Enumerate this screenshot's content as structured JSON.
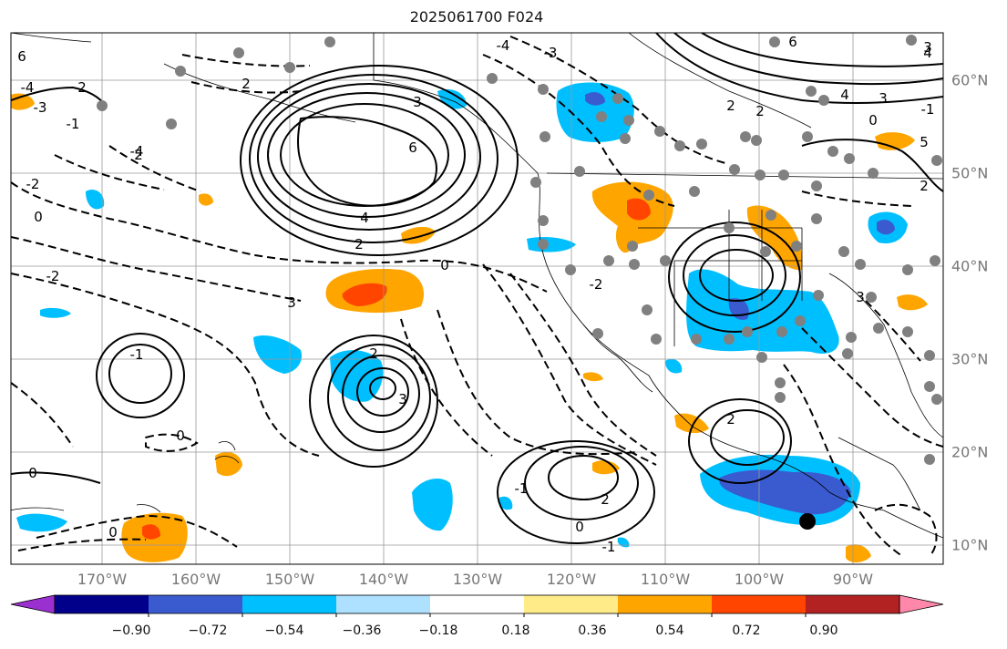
{
  "title": "2025061700 F024",
  "lon_labels": [
    "170°W",
    "160°W",
    "150°W",
    "140°W",
    "130°W",
    "120°W",
    "110°W",
    "100°W",
    "90°W"
  ],
  "lat_labels": [
    "60°N",
    "50°N",
    "40°N",
    "30°N",
    "20°N",
    "10°N"
  ],
  "contour_labels": [
    "6",
    "4",
    "2",
    "0",
    "-2",
    "2",
    "6",
    "4",
    "3",
    "2",
    "0",
    "-1",
    "2",
    "3",
    "-1",
    "2",
    "0",
    "2",
    "-1",
    "2",
    "-1",
    "0",
    "3",
    "-4",
    "-3",
    "2",
    "-4",
    "-3",
    "-1",
    "2",
    "4",
    "3",
    "5",
    "6",
    "2",
    "0",
    "-2",
    "0",
    "-4",
    "3",
    "-2",
    "3",
    "0"
  ],
  "colorbar": {
    "ticks": [
      "−0.90",
      "−0.72",
      "−0.54",
      "−0.36",
      "−0.18",
      "0.18",
      "0.36",
      "0.54",
      "0.72",
      "0.90"
    ],
    "colors": [
      "#9b30d0",
      "#00008b",
      "#3a5bcf",
      "#00bfff",
      "#aee0ff",
      "#ffffff",
      "#ffeb88",
      "#ffa500",
      "#ff4500",
      "#b22222",
      "#ff88aa"
    ]
  }
}
